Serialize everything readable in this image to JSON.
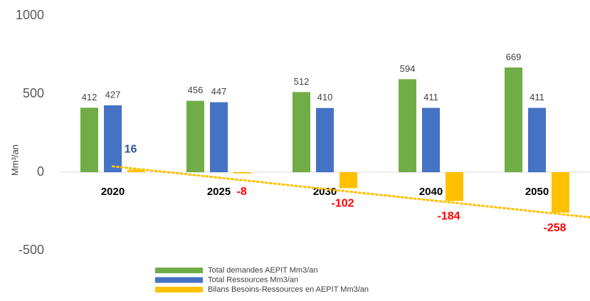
{
  "chart_data": {
    "type": "bar",
    "y_label": "Mm³/an",
    "categories": [
      "2020",
      "2025",
      "2030",
      "2040",
      "2050"
    ],
    "series": [
      {
        "name": "Total demandes AEPIT Mm3/an",
        "color": "#70ad47",
        "values": [
          412,
          456,
          512,
          594,
          669
        ]
      },
      {
        "name": "Total Ressources Mm3/an",
        "color": "#4472c4",
        "values": [
          427,
          447,
          410,
          411,
          411
        ]
      },
      {
        "name": "Bilans Besoins-Ressources en AEPIT  Mm3/an",
        "color": "#ffc000",
        "values": [
          16,
          -8,
          -102,
          -184,
          -258
        ],
        "label_colors": [
          "#2f5597",
          "#ff0000",
          "#ff0000",
          "#ff0000",
          "#ff0000"
        ],
        "trendline": "linear"
      }
    ],
    "ylim": [
      -500,
      1000
    ],
    "yticks": [
      -500,
      0,
      500,
      1000
    ],
    "grid": false
  }
}
